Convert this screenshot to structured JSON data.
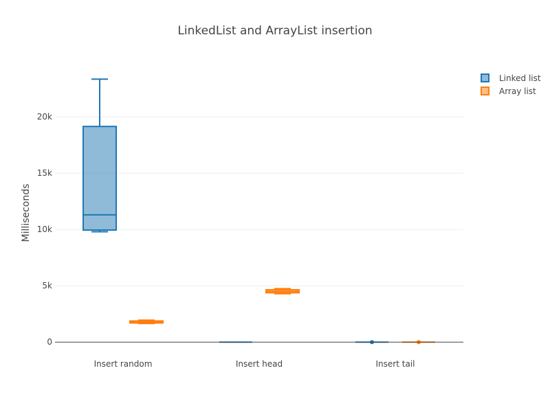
{
  "chart_data": {
    "type": "box",
    "title": "LinkedList and ArrayList insertion",
    "xlabel": "",
    "ylabel": "Milliseconds",
    "categories": [
      "Insert random",
      "Insert head",
      "Insert tail"
    ],
    "ylim": [
      -900,
      25500
    ],
    "yticks": [
      0,
      5000,
      10000,
      15000,
      20000
    ],
    "ytick_labels": [
      "0",
      "5k",
      "10k",
      "15k",
      "20k"
    ],
    "grid": true,
    "legend_position": "top-right",
    "series": [
      {
        "name": "Linked list",
        "color": "#1f77b4",
        "boxes": [
          {
            "min": 9800,
            "q1": 9950,
            "median": 11300,
            "q3": 19150,
            "max": 23350
          },
          {
            "min": 0,
            "q1": 0,
            "median": 0,
            "q3": 0,
            "max": 0
          },
          {
            "min": 0,
            "q1": 0,
            "median": 0,
            "q3": 0,
            "max": 0
          }
        ]
      },
      {
        "name": "Array list",
        "color": "#ff7f0e",
        "boxes": [
          {
            "min": 1650,
            "q1": 1700,
            "median": 1780,
            "q3": 1880,
            "max": 1950
          },
          {
            "min": 4300,
            "q1": 4380,
            "median": 4500,
            "q3": 4650,
            "max": 4750
          },
          {
            "min": 0,
            "q1": 0,
            "median": 0,
            "q3": 0,
            "max": 0
          }
        ]
      }
    ]
  }
}
